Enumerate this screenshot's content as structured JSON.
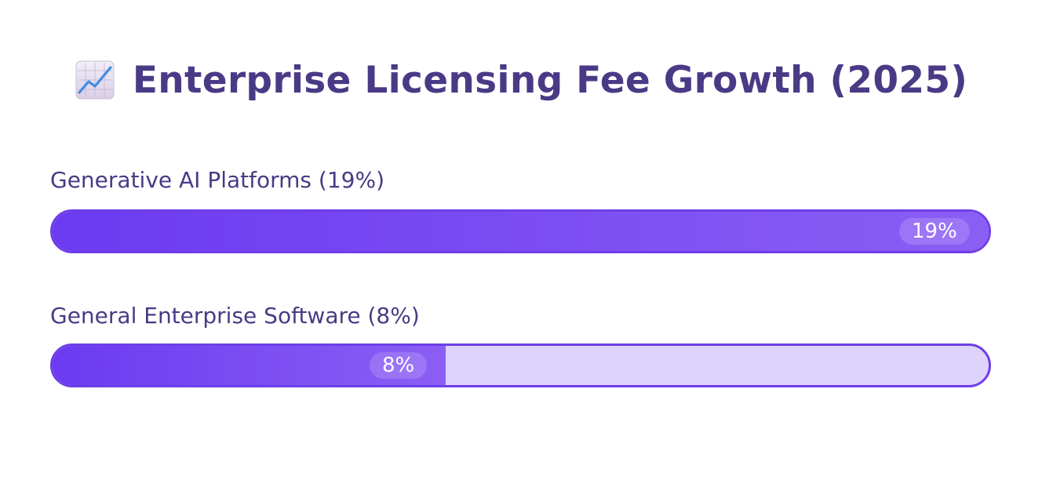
{
  "title": "Enterprise Licensing Fee Growth (2025)",
  "title_icon": "chart-increasing-icon",
  "colors": {
    "title": "#4a3a86",
    "bar_fill_start": "#6c3af0",
    "bar_fill_end": "#8b5ef5",
    "bar_border": "#6e3ee8",
    "bar_track": "#ddd3fb",
    "value_text": "#ffffff"
  },
  "chart_data": {
    "type": "bar",
    "orientation": "horizontal",
    "bars": [
      {
        "category": "Generative AI Platforms",
        "label": "Generative AI Platforms (19%)",
        "value": 19,
        "value_label": "19%",
        "fill_fraction": 1.0
      },
      {
        "category": "General Enterprise Software",
        "label": "General Enterprise Software (8%)",
        "value": 8,
        "value_label": "8%",
        "fill_fraction": 0.42
      }
    ]
  }
}
